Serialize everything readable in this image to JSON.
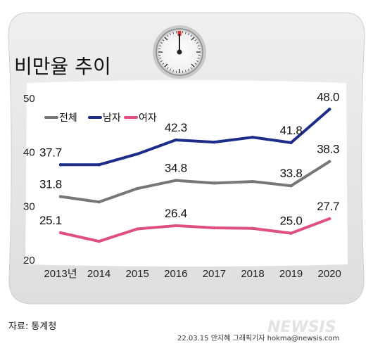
{
  "title": "비만율 추이",
  "colors": {
    "total": "#777777",
    "male": "#1d2c8a",
    "female": "#e0507d",
    "scale_body": "#e2e2e2",
    "background": "#ffffff"
  },
  "chart_data": {
    "type": "line",
    "title": "비만율 추이",
    "x": [
      "2013년",
      "2014",
      "2015",
      "2016",
      "2017",
      "2018",
      "2019",
      "2020"
    ],
    "y_ticks": [
      20,
      30,
      40,
      50
    ],
    "ylim": [
      20,
      50
    ],
    "grid": false,
    "legend_position": "top-left",
    "series": [
      {
        "name": "전체",
        "color": "#777777",
        "values": [
          31.8,
          30.8,
          33.3,
          34.8,
          34.3,
          34.6,
          33.8,
          38.3
        ],
        "labels": [
          {
            "i": 0,
            "text": "31.8"
          },
          {
            "i": 3,
            "text": "34.8"
          },
          {
            "i": 6,
            "text": "33.8"
          },
          {
            "i": 7,
            "text": "38.3"
          }
        ]
      },
      {
        "name": "남자",
        "color": "#1d2c8a",
        "values": [
          37.7,
          37.7,
          39.7,
          42.3,
          41.9,
          42.8,
          41.8,
          48.0
        ],
        "labels": [
          {
            "i": 0,
            "text": "37.7"
          },
          {
            "i": 3,
            "text": "42.3"
          },
          {
            "i": 6,
            "text": "41.8"
          },
          {
            "i": 7,
            "text": "48.0"
          }
        ]
      },
      {
        "name": "여자",
        "color": "#e0507d",
        "values": [
          25.1,
          23.5,
          25.8,
          26.4,
          26.0,
          25.9,
          25.0,
          27.7
        ],
        "labels": [
          {
            "i": 0,
            "text": "25.1"
          },
          {
            "i": 3,
            "text": "26.4"
          },
          {
            "i": 6,
            "text": "25.0"
          },
          {
            "i": 7,
            "text": "27.7"
          }
        ]
      }
    ]
  },
  "source": "자료: 통계청",
  "credit": "22.03.15 안지혜 그래픽기자 hokma@newsis.com",
  "watermark": "NEWSIS"
}
